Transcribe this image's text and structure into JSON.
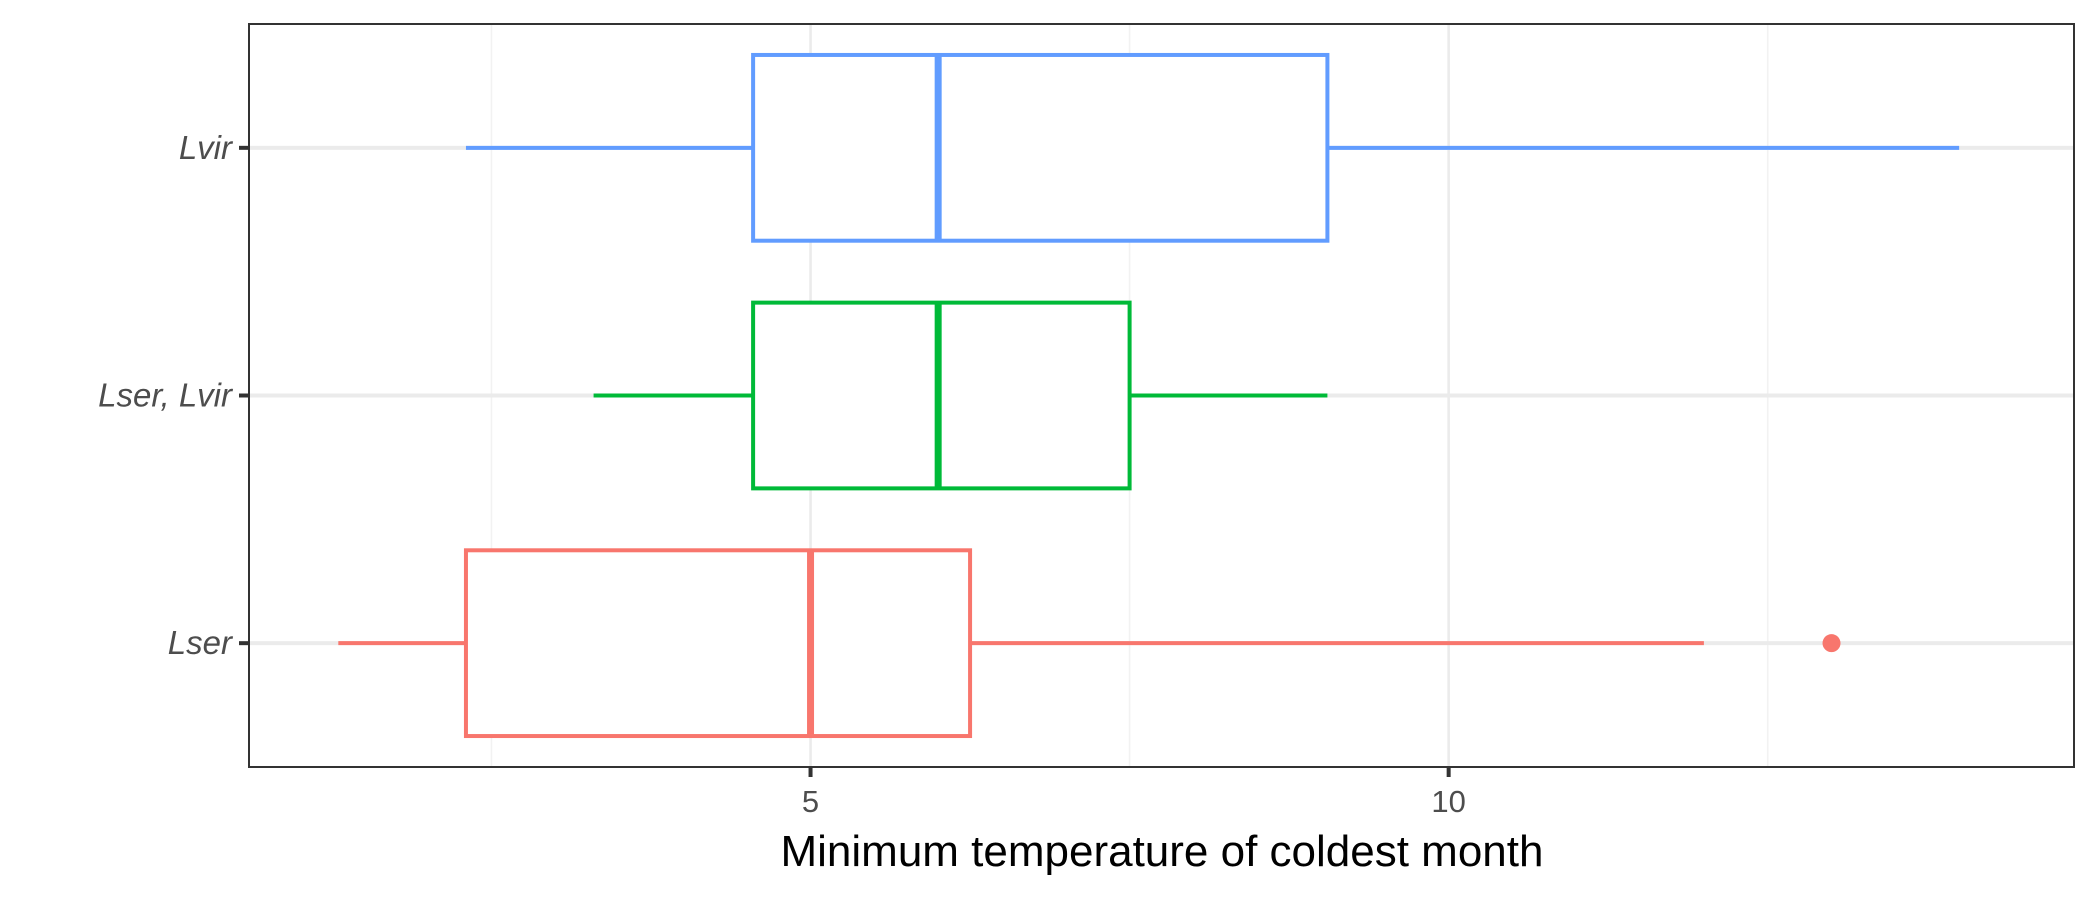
{
  "chart_data": {
    "type": "boxplot",
    "title": "",
    "xlabel": "Minimum temperature of coldest month",
    "ylabel": "",
    "orientation": "horizontal",
    "xlim": [
      0.6,
      14.9
    ],
    "x_ticks": [
      5,
      10
    ],
    "x_tick_labels": [
      "5",
      "10"
    ],
    "grid": true,
    "legend": "none",
    "categories": [
      "Lser",
      "Lser, Lvir",
      "Lvir"
    ],
    "series": [
      {
        "category": "Lser",
        "color": "#F8766D",
        "whisker_low": 1.3,
        "q1": 2.3,
        "median": 5.0,
        "q3": 6.25,
        "whisker_high": 12.0,
        "outliers": [
          13.0
        ]
      },
      {
        "category": "Lser, Lvir",
        "color": "#00BA38",
        "whisker_low": 3.3,
        "q1": 4.55,
        "median": 6.0,
        "q3": 7.5,
        "whisker_high": 9.05,
        "outliers": []
      },
      {
        "category": "Lvir",
        "color": "#619CFF",
        "whisker_low": 2.3,
        "q1": 4.55,
        "median": 6.0,
        "q3": 9.05,
        "whisker_high": 14.0,
        "outliers": []
      }
    ]
  }
}
